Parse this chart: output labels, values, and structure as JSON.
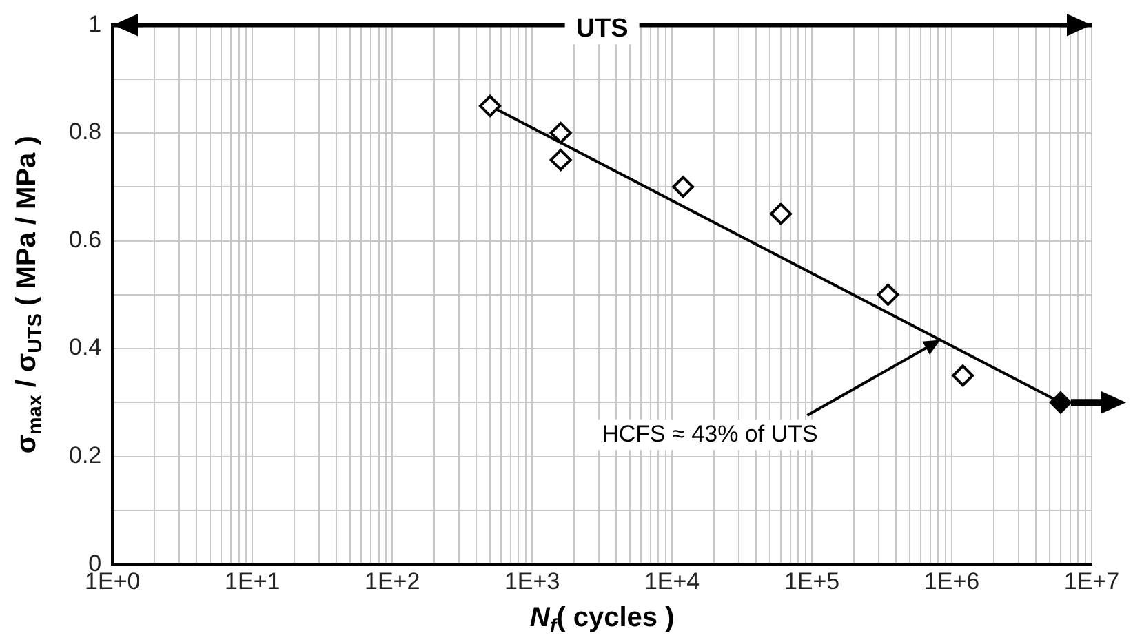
{
  "chart_data": {
    "type": "scatter",
    "xlabel": "N$_{f}$( cycles )",
    "ylabel": "σ$_{max}$ / σ$_{UTS}$ ( MPa / MPa )",
    "log": "x",
    "grid": true,
    "legend": false,
    "marker": "diamond",
    "xlim": [
      1,
      10000000
    ],
    "ylim": [
      0,
      1
    ],
    "xticks": [
      {
        "value": 1,
        "label": "1E+0"
      },
      {
        "value": 2,
        "label": null
      },
      {
        "value": 3,
        "label": null
      },
      {
        "value": 4,
        "label": null
      },
      {
        "value": 5,
        "label": null
      },
      {
        "value": 6,
        "label": null
      },
      {
        "value": 7,
        "label": null
      },
      {
        "value": 8,
        "label": null
      },
      {
        "value": 9,
        "label": null
      },
      {
        "value": 10,
        "label": "1E+1"
      },
      {
        "value": 20,
        "label": null
      },
      {
        "value": 30,
        "label": null
      },
      {
        "value": 40,
        "label": null
      },
      {
        "value": 50,
        "label": null
      },
      {
        "value": 60,
        "label": null
      },
      {
        "value": 70,
        "label": null
      },
      {
        "value": 80,
        "label": null
      },
      {
        "value": 90,
        "label": null
      },
      {
        "value": 100,
        "label": "1E+2"
      },
      {
        "value": 200,
        "label": null
      },
      {
        "value": 300,
        "label": null
      },
      {
        "value": 400,
        "label": null
      },
      {
        "value": 500,
        "label": null
      },
      {
        "value": 600,
        "label": null
      },
      {
        "value": 700,
        "label": null
      },
      {
        "value": 800,
        "label": null
      },
      {
        "value": 900,
        "label": null
      },
      {
        "value": 1000,
        "label": "1E+3"
      },
      {
        "value": 2000,
        "label": null
      },
      {
        "value": 3000,
        "label": null
      },
      {
        "value": 4000,
        "label": null
      },
      {
        "value": 5000,
        "label": null
      },
      {
        "value": 6000,
        "label": null
      },
      {
        "value": 7000,
        "label": null
      },
      {
        "value": 8000,
        "label": null
      },
      {
        "value": 9000,
        "label": null
      },
      {
        "value": 10000,
        "label": "1E+4"
      },
      {
        "value": 20000,
        "label": null
      },
      {
        "value": 30000,
        "label": null
      },
      {
        "value": 40000,
        "label": null
      },
      {
        "value": 50000,
        "label": null
      },
      {
        "value": 60000,
        "label": null
      },
      {
        "value": 70000,
        "label": null
      },
      {
        "value": 80000,
        "label": null
      },
      {
        "value": 90000,
        "label": null
      },
      {
        "value": 100000,
        "label": "1E+5"
      },
      {
        "value": 200000,
        "label": null
      },
      {
        "value": 300000,
        "label": null
      },
      {
        "value": 400000,
        "label": null
      },
      {
        "value": 500000,
        "label": null
      },
      {
        "value": 600000,
        "label": null
      },
      {
        "value": 700000,
        "label": null
      },
      {
        "value": 800000,
        "label": null
      },
      {
        "value": 900000,
        "label": null
      },
      {
        "value": 1000000,
        "label": "1E+6"
      },
      {
        "value": 2000000,
        "label": null
      },
      {
        "value": 3000000,
        "label": null
      },
      {
        "value": 4000000,
        "label": null
      },
      {
        "value": 5000000,
        "label": null
      },
      {
        "value": 6000000,
        "label": null
      },
      {
        "value": 7000000,
        "label": null
      },
      {
        "value": 8000000,
        "label": null
      },
      {
        "value": 9000000,
        "label": null
      },
      {
        "value": 10000000,
        "label": "1E+7"
      }
    ],
    "yticks": [
      0,
      {
        "value": 0.1,
        "label": null
      },
      0.2,
      {
        "value": 0.3,
        "label": null
      },
      0.4,
      {
        "value": 0.5,
        "label": null
      },
      0.6,
      {
        "value": 0.7,
        "label": null
      },
      0.8,
      {
        "value": 0.9,
        "label": null
      },
      1
    ],
    "series": [
      {
        "color": "#000000",
        "x": [
          500,
          1600,
          1600,
          12000,
          60000,
          350000,
          1200000
        ],
        "values": [
          0.85,
          0.8,
          0.75,
          0.7,
          0.65,
          0.5,
          0.35
        ]
      },
      {
        "color": "#000000",
        "x": [
          6000000
        ],
        "values": [
          0.3
        ]
      },
      {
        "type": "line",
        "color": "#000000",
        "marker": "none",
        "x": [
          500,
          6000000
        ],
        "values": [
          0.85,
          0.3
        ]
      }
    ],
    "ref_lines": [
      {
        "axis": "y",
        "value": 1,
        "label": "UTS",
        "color": "#000000"
      }
    ],
    "annotations": [
      "HCFS ≈ 43% of UTS"
    ]
  }
}
